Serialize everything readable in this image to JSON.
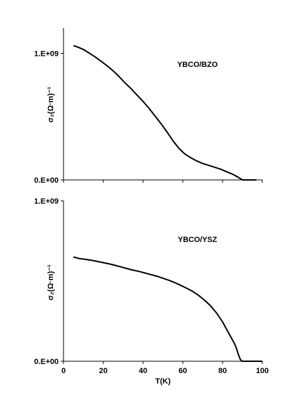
{
  "chart_data": [
    {
      "type": "line",
      "panel_label": "YBCO/BZO",
      "ylabel": "σ₂(Ω·m)⁻¹",
      "xlim": [
        0,
        100
      ],
      "ylim": [
        0,
        1200000000.0
      ],
      "yticks": [
        0,
        1000000000
      ],
      "ytick_labels": [
        "0.E+00",
        "1.E+09"
      ],
      "xticks": [
        0,
        20,
        40,
        60,
        80,
        100
      ],
      "xtick_labels": [],
      "series": [
        {
          "x": [
            5,
            7,
            10,
            13,
            16,
            19,
            22,
            25,
            28,
            31,
            34,
            37,
            40,
            43,
            46,
            49,
            52,
            55,
            58,
            61,
            64,
            67,
            70,
            73,
            76,
            79,
            82,
            85,
            88,
            90,
            92,
            94,
            96,
            97
          ],
          "y": [
            1060000000.0,
            1050000000.0,
            1030000000.0,
            1000000000.0,
            970000000.0,
            935000000.0,
            900000000.0,
            860000000.0,
            815000000.0,
            765000000.0,
            720000000.0,
            670000000.0,
            620000000.0,
            565000000.0,
            505000000.0,
            445000000.0,
            380000000.0,
            310000000.0,
            250000000.0,
            205000000.0,
            175000000.0,
            150000000.0,
            130000000.0,
            115000000.0,
            100000000.0,
            85000000.0,
            65000000.0,
            45000000.0,
            20000000.0,
            0,
            0,
            0,
            0,
            0
          ]
        }
      ]
    },
    {
      "type": "line",
      "panel_label": "YBCO/YSZ",
      "ylabel": "σ₂(Ω·m)⁻¹",
      "xlabel": "T(K)",
      "xlim": [
        0,
        100
      ],
      "ylim": [
        0,
        1000000000.0
      ],
      "yticks": [
        0,
        1000000000
      ],
      "ytick_labels": [
        "0.E+00",
        "1.E+09"
      ],
      "xticks": [
        0,
        20,
        40,
        60,
        80,
        100
      ],
      "xtick_labels": [
        "0",
        "20",
        "40",
        "60",
        "80",
        "100"
      ],
      "series": [
        {
          "x": [
            5,
            8,
            11,
            14,
            17,
            20,
            23,
            26,
            29,
            32,
            35,
            38,
            41,
            44,
            47,
            50,
            53,
            56,
            59,
            62,
            65,
            68,
            71,
            74,
            77,
            80,
            82,
            84,
            86,
            87,
            88,
            89,
            90,
            92,
            94,
            96,
            100
          ],
          "y": [
            650000000.0,
            640000000.0,
            635000000.0,
            630000000.0,
            622000000.0,
            615000000.0,
            607000000.0,
            598000000.0,
            588000000.0,
            578000000.0,
            568000000.0,
            560000000.0,
            550000000.0,
            540000000.0,
            530000000.0,
            518000000.0,
            505000000.0,
            490000000.0,
            473000000.0,
            455000000.0,
            435000000.0,
            410000000.0,
            380000000.0,
            345000000.0,
            300000000.0,
            245000000.0,
            200000000.0,
            155000000.0,
            110000000.0,
            80000000.0,
            40000000.0,
            10000000.0,
            0,
            0,
            0,
            0,
            0
          ]
        }
      ]
    }
  ]
}
